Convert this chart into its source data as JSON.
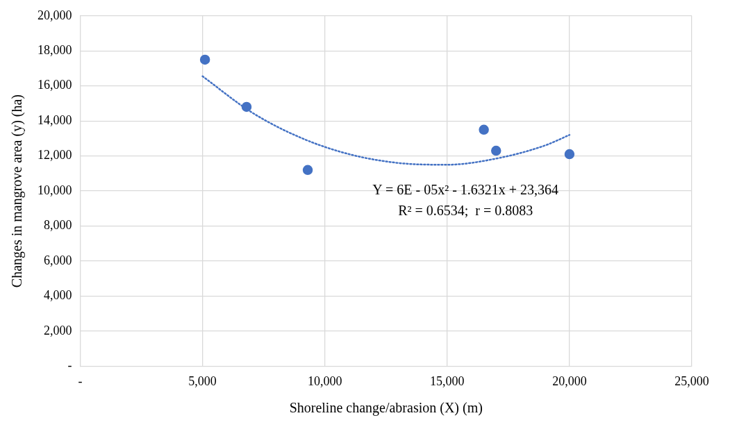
{
  "chart_data": {
    "type": "scatter",
    "xlabel": "Shoreline change/abrasion (X) (m)",
    "ylabel": "Changes in mangrove area (y) (ha)",
    "xlim": [
      0,
      25000
    ],
    "xticks": [
      {
        "value": 0,
        "label": "-"
      },
      {
        "value": 5000,
        "label": "5,000"
      },
      {
        "value": 10000,
        "label": "10,000"
      },
      {
        "value": 15000,
        "label": "15,000"
      },
      {
        "value": 20000,
        "label": "20,000"
      },
      {
        "value": 25000,
        "label": "25,000"
      }
    ],
    "ylim": [
      0,
      20000
    ],
    "yticks": [
      {
        "value": 0,
        "label": "-"
      },
      {
        "value": 2000,
        "label": "2,000"
      },
      {
        "value": 4000,
        "label": "4,000"
      },
      {
        "value": 6000,
        "label": "6,000"
      },
      {
        "value": 8000,
        "label": "8,000"
      },
      {
        "value": 10000,
        "label": "10,000"
      },
      {
        "value": 12000,
        "label": "12,000"
      },
      {
        "value": 14000,
        "label": "14,000"
      },
      {
        "value": 16000,
        "label": "16,000"
      },
      {
        "value": 18000,
        "label": "18,000"
      },
      {
        "value": 20000,
        "label": "20,000"
      }
    ],
    "grid": true,
    "legend": false,
    "series": [
      {
        "type": "scatter",
        "color": "#4472c4",
        "marker": "circle",
        "x": [
          5100,
          6800,
          9300,
          16500,
          17000,
          20000
        ],
        "values": [
          17500,
          14800,
          11200,
          13500,
          12300,
          12100
        ]
      },
      {
        "type": "line",
        "color": "#4472c4",
        "marker": "none",
        "line_style": "dotted",
        "x": [
          5000,
          7000,
          9000,
          11000,
          13000,
          15000,
          17000,
          19000,
          20000
        ],
        "values": [
          16550,
          14500,
          13050,
          12100,
          11600,
          11500,
          11850,
          12600,
          13200
        ]
      }
    ],
    "annotations": [
      "Y = 6E - 05x² - 1.6321x + 23,364",
      "R² = 0.6534;  r = 0.8083"
    ]
  }
}
